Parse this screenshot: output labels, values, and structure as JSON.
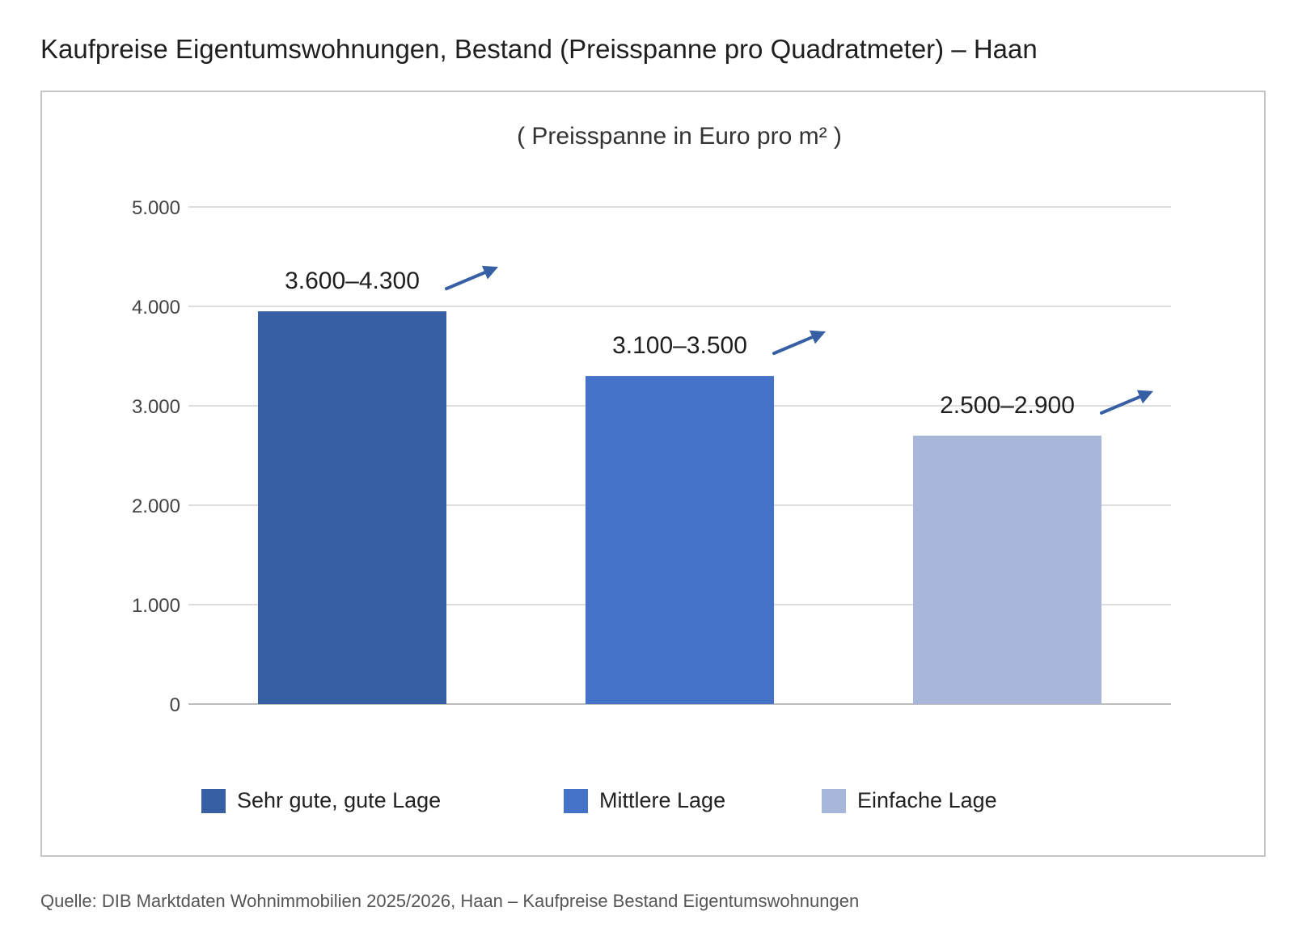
{
  "page": {
    "title": "Kaufpreise Eigentumswohnungen, Bestand (Preisspanne pro Quadratmeter) – Haan",
    "source": "Quelle: DIB Marktdaten Wohnimmobilien 2025/2026, Haan – Kaufpreise Bestand Eigentumswohnungen"
  },
  "chart_data": {
    "type": "bar",
    "title": "",
    "subtitle": "( Preisspanne in Euro pro m² )",
    "xlabel": "",
    "ylabel": "",
    "ylim": [
      0,
      5000
    ],
    "yticks": [
      0,
      1000,
      2000,
      3000,
      4000,
      5000
    ],
    "ytick_labels": [
      "0",
      "1.000",
      "2.000",
      "3.000",
      "4.000",
      "5.000"
    ],
    "grid": true,
    "legend_position": "bottom",
    "categories": [
      "Sehr gute, gute Lage",
      "Mittlere Lage",
      "Einfache Lage"
    ],
    "values": [
      3950,
      3300,
      2700
    ],
    "data_labels": [
      "3.600–4.300",
      "3.100–3.500",
      "2.500–2.900"
    ],
    "trend": [
      "up",
      "up",
      "up"
    ],
    "colors": [
      "#375fa3",
      "#4472c8",
      "#a8b6da"
    ],
    "annotation_color": "#375fa3"
  }
}
